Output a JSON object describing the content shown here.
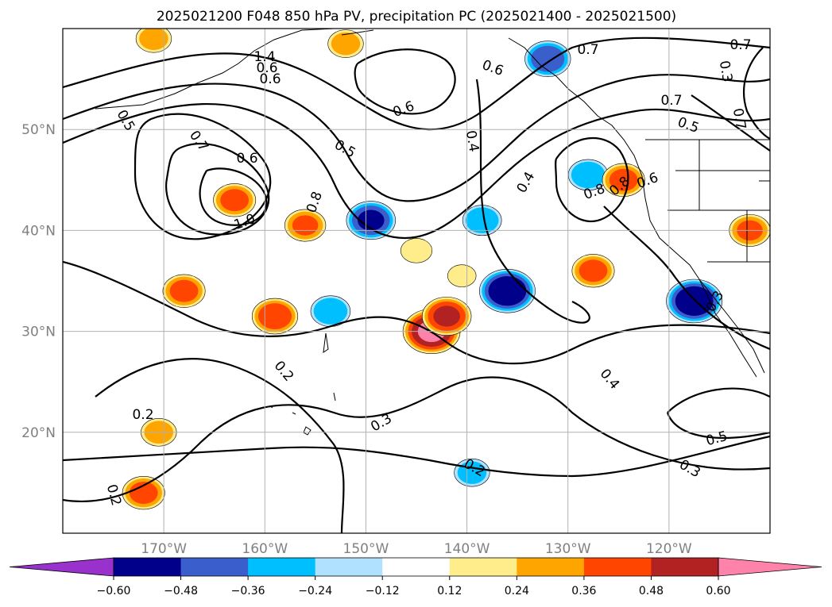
{
  "chart_data": {
    "type": "heatmap",
    "title": "2025021200 F048 850 hPa PV, precipitation PC (2025021400 - 2025021500)",
    "map": {
      "lon_range": [
        -180,
        -110
      ],
      "lat_range": [
        10,
        60
      ],
      "xticks": [
        {
          "lon": -170,
          "label": "170°W"
        },
        {
          "lon": -160,
          "label": "160°W"
        },
        {
          "lon": -150,
          "label": "150°W"
        },
        {
          "lon": -140,
          "label": "140°W"
        },
        {
          "lon": -130,
          "label": "130°W"
        },
        {
          "lon": -120,
          "label": "120°W"
        }
      ],
      "yticks": [
        {
          "lat": 20,
          "label": "20°N"
        },
        {
          "lat": 30,
          "label": "30°N"
        },
        {
          "lat": 40,
          "label": "40°N"
        },
        {
          "lat": 50,
          "label": "50°N"
        }
      ],
      "grid": true
    },
    "colorbar": {
      "levels": [
        "-0.60",
        "-0.48",
        "-0.36",
        "-0.24",
        "-0.12",
        "0.12",
        "0.24",
        "0.36",
        "0.48",
        "0.60"
      ],
      "colors": [
        "#9932cc",
        "#00008b",
        "#3a5fcd",
        "#00bfff",
        "#b0e2ff",
        "#ffffff",
        "#ffec8b",
        "#ffa500",
        "#ff4500",
        "#b22222",
        "#ff82ab"
      ],
      "extend": "both"
    },
    "pc_regions": [
      {
        "lon": -143.5,
        "lat": 30.0,
        "value": 0.62
      },
      {
        "lon": -142.0,
        "lat": 31.5,
        "value": 0.5
      },
      {
        "lon": -140.5,
        "lat": 35.5,
        "value": 0.2
      },
      {
        "lon": -136.0,
        "lat": 34.0,
        "value": -0.6
      },
      {
        "lon": -138.5,
        "lat": 41.0,
        "value": -0.35
      },
      {
        "lon": -149.5,
        "lat": 41.0,
        "value": -0.5
      },
      {
        "lon": -153.5,
        "lat": 32.0,
        "value": -0.36
      },
      {
        "lon": -117.5,
        "lat": 33.0,
        "value": -0.6
      },
      {
        "lon": -128.0,
        "lat": 45.5,
        "value": -0.36
      },
      {
        "lon": -132.0,
        "lat": 57.0,
        "value": -0.45
      },
      {
        "lon": -127.5,
        "lat": 36.0,
        "value": 0.4
      },
      {
        "lon": -124.5,
        "lat": 45.0,
        "value": 0.4
      },
      {
        "lon": -168.0,
        "lat": 34.0,
        "value": 0.4
      },
      {
        "lon": -159.0,
        "lat": 31.5,
        "value": 0.45
      },
      {
        "lon": -163.0,
        "lat": 43.0,
        "value": 0.4
      },
      {
        "lon": -156.0,
        "lat": 40.5,
        "value": 0.38
      },
      {
        "lon": -152.0,
        "lat": 58.5,
        "value": 0.3
      },
      {
        "lon": -171.0,
        "lat": 59.0,
        "value": 0.3
      },
      {
        "lon": -170.5,
        "lat": 20.0,
        "value": 0.3
      },
      {
        "lon": -172.0,
        "lat": 14.0,
        "value": 0.4
      },
      {
        "lon": -139.5,
        "lat": 16.0,
        "value": -0.3
      },
      {
        "lon": -112.0,
        "lat": 40.0,
        "value": 0.38
      },
      {
        "lon": -145.0,
        "lat": 38.0,
        "value": 0.24
      }
    ],
    "contour_labels": [
      "1.4",
      "1.0",
      "0.8",
      "0.8",
      "0.7",
      "0.7",
      "0.7",
      "0.7",
      "0.7",
      "0.6",
      "0.6",
      "0.6",
      "0.6",
      "0.6",
      "0.5",
      "0.5",
      "0.5",
      "0.5",
      "0.4",
      "0.4",
      "0.4",
      "0.3",
      "0.3",
      "0.3",
      "0.3",
      "0.2",
      "0.2",
      "0.2",
      "0.2",
      "0.8",
      "0.6"
    ]
  }
}
